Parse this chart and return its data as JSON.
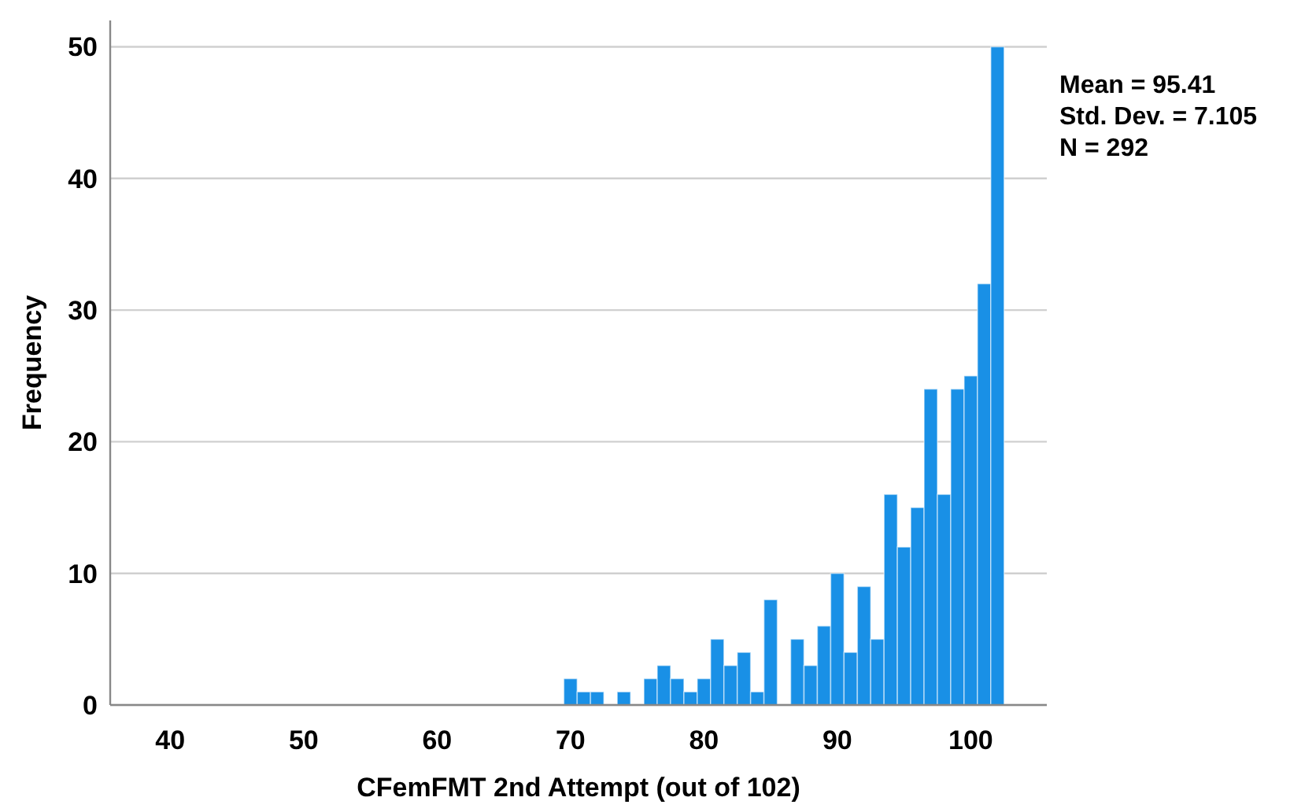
{
  "chart_data": {
    "type": "histogram",
    "xlabel": "CFemFMT 2nd Attempt (out of 102)",
    "ylabel": "Frequency",
    "bins": [
      69.5,
      70.5,
      71.5,
      72.5,
      73.5,
      74.5,
      75.5,
      76.5,
      77.5,
      78.5,
      79.5,
      80.5,
      81.5,
      82.5,
      83.5,
      84.5,
      85.5,
      86.5,
      87.5,
      88.5,
      89.5,
      90.5,
      91.5,
      92.5,
      93.5,
      94.5,
      95.5,
      96.5,
      97.5,
      98.5,
      99.5,
      100.5,
      101.5,
      102.5
    ],
    "values": [
      2,
      1,
      1,
      0,
      1,
      0,
      2,
      3,
      2,
      1,
      2,
      5,
      3,
      4,
      1,
      8,
      0,
      5,
      3,
      6,
      10,
      4,
      9,
      5,
      16,
      12,
      15,
      24,
      16,
      24,
      25,
      32,
      50
    ],
    "color": "#1990e6",
    "xlim": [
      35.5,
      105.7
    ],
    "xticks": [
      40,
      50,
      60,
      70,
      80,
      90,
      100
    ],
    "ylim": [
      0,
      52
    ],
    "yticks": [
      0,
      10,
      20,
      30,
      40,
      50
    ],
    "grid": "y",
    "annotations": [
      "Mean = 95.41",
      "Std. Dev. = 7.105",
      "N = 292"
    ]
  }
}
